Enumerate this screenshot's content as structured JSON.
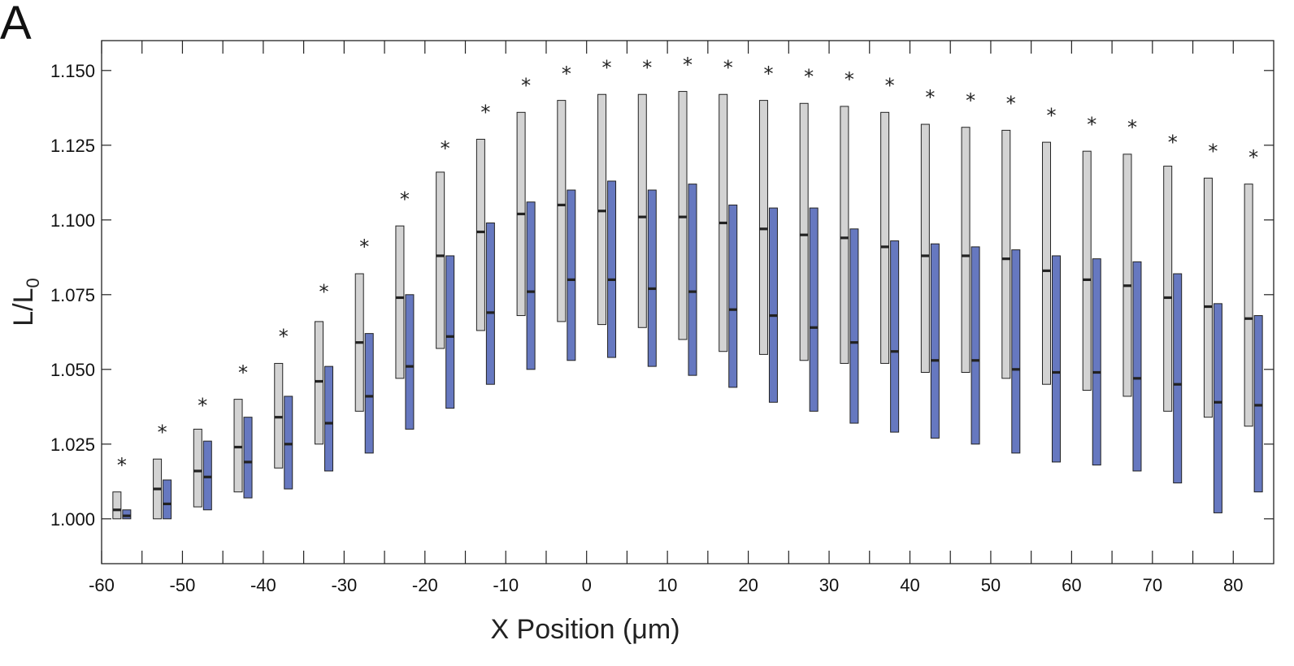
{
  "panel_label": "A",
  "chart_data": {
    "type": "box",
    "xlabel": "X Position (",
    "xlabel_unit": "μm",
    "xlabel_close": ")",
    "ylabel_main": "L/L",
    "ylabel_sub": "0",
    "xlim": [
      -60,
      85
    ],
    "ylim": [
      0.985,
      1.16
    ],
    "x_ticks": [
      -60,
      -50,
      -40,
      -30,
      -20,
      -10,
      0,
      10,
      20,
      30,
      40,
      50,
      60,
      70,
      80
    ],
    "x_minor_ticks": [
      -55,
      -45,
      -35,
      -25,
      -15,
      -5,
      5,
      15,
      25,
      35,
      45,
      55,
      65,
      75
    ],
    "y_ticks": [
      1.0,
      1.025,
      1.05,
      1.075,
      1.1,
      1.125,
      1.15
    ],
    "y_tick_labels": [
      "1.000",
      "1.025",
      "1.050",
      "1.075",
      "1.100",
      "1.125",
      "1.150"
    ],
    "grid": false,
    "colors": {
      "grey": "#d3d3d3",
      "blue": "#6678c0",
      "marker": "#222222"
    },
    "x": [
      -57.5,
      -52.5,
      -47.5,
      -42.5,
      -37.5,
      -32.5,
      -27.5,
      -22.5,
      -17.5,
      -12.5,
      -7.5,
      -2.5,
      2.5,
      7.5,
      12.5,
      17.5,
      22.5,
      27.5,
      32.5,
      37.5,
      42.5,
      47.5,
      52.5,
      57.5,
      62.5,
      67.5,
      72.5,
      77.5,
      82.5
    ],
    "series": [
      {
        "color": "grey",
        "low": [
          1.0,
          1.0,
          1.004,
          1.009,
          1.017,
          1.025,
          1.036,
          1.047,
          1.057,
          1.063,
          1.068,
          1.066,
          1.065,
          1.064,
          1.06,
          1.056,
          1.055,
          1.053,
          1.052,
          1.052,
          1.049,
          1.049,
          1.047,
          1.045,
          1.043,
          1.041,
          1.036,
          1.034,
          1.031
        ],
        "median": [
          1.003,
          1.01,
          1.016,
          1.024,
          1.034,
          1.046,
          1.059,
          1.074,
          1.088,
          1.096,
          1.102,
          1.105,
          1.103,
          1.101,
          1.101,
          1.099,
          1.097,
          1.095,
          1.094,
          1.091,
          1.088,
          1.088,
          1.087,
          1.083,
          1.08,
          1.078,
          1.074,
          1.071,
          1.067
        ],
        "high": [
          1.009,
          1.02,
          1.03,
          1.04,
          1.052,
          1.066,
          1.082,
          1.098,
          1.116,
          1.127,
          1.136,
          1.14,
          1.142,
          1.142,
          1.143,
          1.142,
          1.14,
          1.139,
          1.138,
          1.136,
          1.132,
          1.131,
          1.13,
          1.126,
          1.123,
          1.122,
          1.118,
          1.114,
          1.112
        ]
      },
      {
        "color": "blue",
        "low": [
          1.0,
          1.0,
          1.003,
          1.007,
          1.01,
          1.016,
          1.022,
          1.03,
          1.037,
          1.045,
          1.05,
          1.053,
          1.054,
          1.051,
          1.048,
          1.044,
          1.039,
          1.036,
          1.032,
          1.029,
          1.027,
          1.025,
          1.022,
          1.019,
          1.018,
          1.016,
          1.012,
          1.002,
          1.009
        ],
        "median": [
          1.001,
          1.005,
          1.014,
          1.019,
          1.025,
          1.032,
          1.041,
          1.051,
          1.061,
          1.069,
          1.076,
          1.08,
          1.08,
          1.077,
          1.076,
          1.07,
          1.068,
          1.064,
          1.059,
          1.056,
          1.053,
          1.053,
          1.05,
          1.049,
          1.049,
          1.047,
          1.045,
          1.039,
          1.038
        ],
        "high": [
          1.003,
          1.013,
          1.026,
          1.034,
          1.041,
          1.051,
          1.062,
          1.075,
          1.088,
          1.099,
          1.106,
          1.11,
          1.113,
          1.11,
          1.112,
          1.105,
          1.104,
          1.104,
          1.097,
          1.093,
          1.092,
          1.091,
          1.09,
          1.088,
          1.087,
          1.086,
          1.082,
          1.072,
          1.068
        ]
      }
    ],
    "asterisks_y": [
      1.019,
      1.03,
      1.039,
      1.05,
      1.062,
      1.077,
      1.092,
      1.108,
      1.125,
      1.137,
      1.146,
      1.15,
      1.152,
      1.152,
      1.153,
      1.152,
      1.15,
      1.149,
      1.148,
      1.146,
      1.142,
      1.141,
      1.14,
      1.136,
      1.133,
      1.132,
      1.127,
      1.124,
      1.122
    ],
    "asterisk_symbol": "*"
  }
}
